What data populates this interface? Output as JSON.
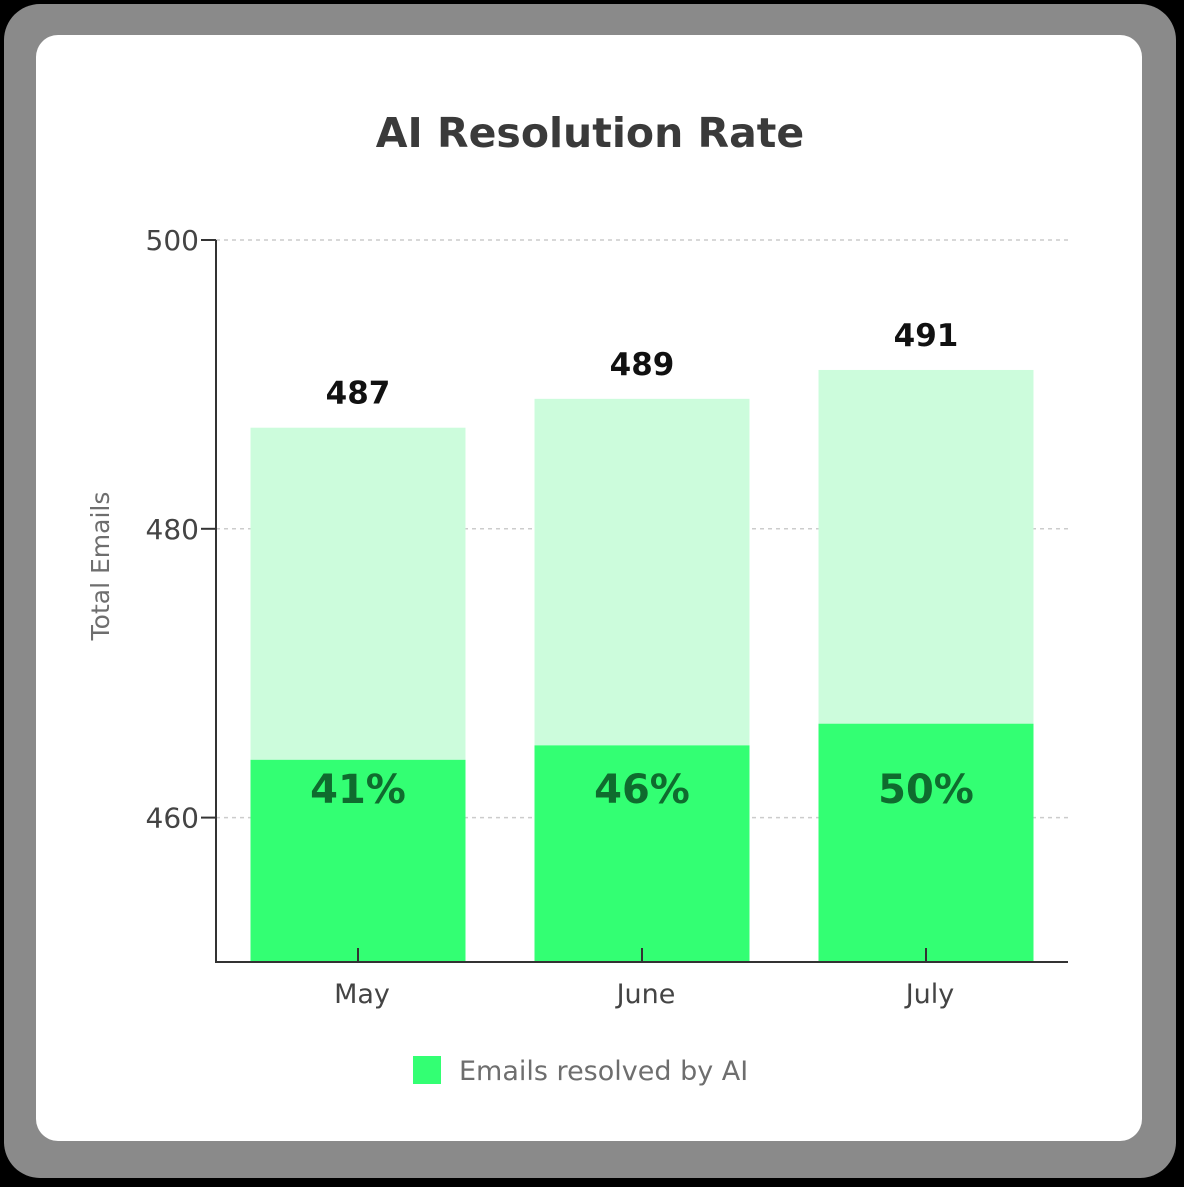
{
  "chart_data": {
    "type": "bar",
    "title": "AI Resolution Rate",
    "xlabel": "",
    "ylabel": "Total Emails",
    "categories": [
      "May",
      "June",
      "July"
    ],
    "ylim": [
      450,
      500
    ],
    "yticks": [
      460,
      480,
      500
    ],
    "grid": true,
    "series": [
      {
        "name": "Emails resolved by AI",
        "values": [
          464,
          465,
          466.5
        ],
        "labels": [
          "41%",
          "46%",
          "50%"
        ],
        "color": "#33ff73"
      },
      {
        "values": [
          487,
          489,
          491
        ],
        "labels": [
          "487",
          "489",
          "491"
        ],
        "color": "#ccfcdc"
      }
    ],
    "legend": {
      "position": "bottom-center",
      "entries": [
        "Emails resolved by AI"
      ]
    }
  },
  "colors": {
    "resolved": "#33ff73",
    "total": "#ccfcdc",
    "pct_text": "#0f6b2e",
    "axis": "#333333",
    "grid": "#cccccc"
  }
}
